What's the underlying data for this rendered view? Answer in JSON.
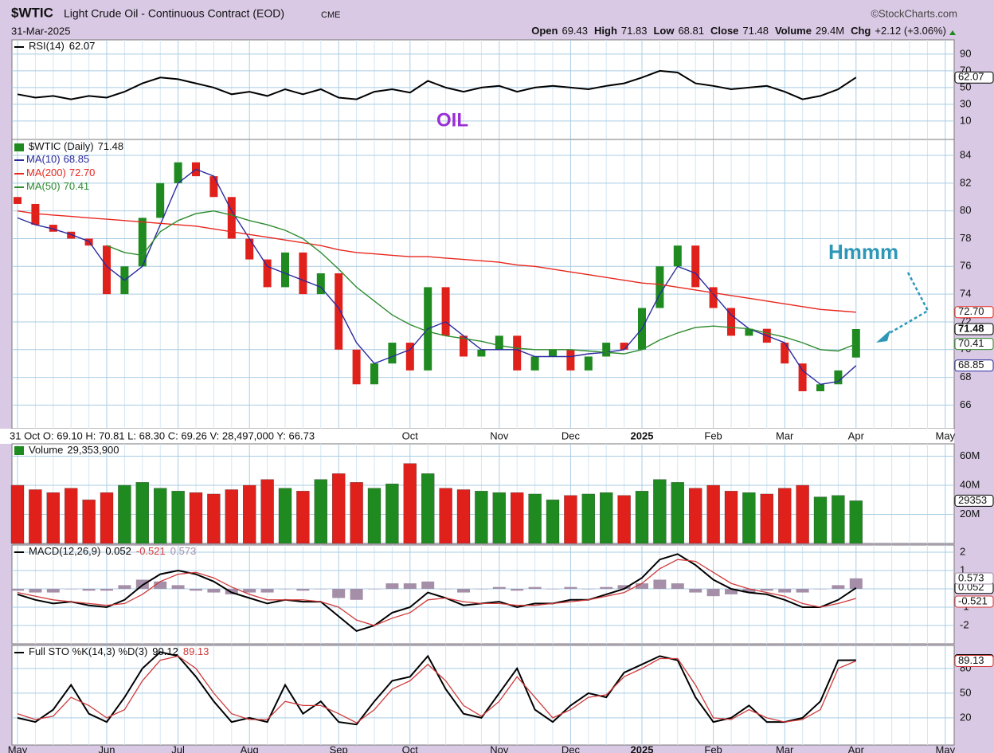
{
  "header": {
    "symbol": "$WTIC",
    "name": "Light Crude Oil - Continuous Contract (EOD)",
    "exchange": "CME",
    "source": "©StockCharts.com",
    "date": "31-Mar-2025",
    "quote": [
      {
        "label": "Open",
        "value": 69.43
      },
      {
        "label": "High",
        "value": 71.83
      },
      {
        "label": "Low",
        "value": 68.81
      },
      {
        "label": "Close",
        "value": 71.48
      },
      {
        "label": "Volume",
        "value": "29.4M"
      },
      {
        "label": "Chg",
        "value": "+2.12 (+3.06%)"
      }
    ]
  },
  "chart_data": [
    {
      "type": "line",
      "title": "RSI(14)",
      "annotation": "OIL",
      "ylim": [
        -12,
        107
      ],
      "yticks": [
        10,
        30,
        50,
        70,
        90
      ],
      "grid": true,
      "series": [
        {
          "color": "#000000",
          "values": [
            42,
            38,
            40,
            36,
            40,
            38,
            45,
            55,
            62,
            60,
            55,
            50,
            42,
            45,
            40,
            48,
            42,
            48,
            38,
            36,
            45,
            48,
            44,
            58,
            50,
            45,
            50,
            52,
            45,
            50,
            52,
            50,
            48,
            52,
            55,
            62,
            70,
            68,
            55,
            52,
            48,
            50,
            52,
            45,
            36,
            40,
            48,
            62.07,
            null,
            null,
            null,
            null,
            null
          ]
        }
      ]
    },
    {
      "type": "candlestick",
      "name": "$WTIC (Daily)",
      "annotation": "Hmmm",
      "info": "31 Oct O: 69.10 H: 70.81 L: 68.30 C: 69.26 V: 28,497,000 Y: 66.73",
      "categories": [
        "May",
        null,
        null,
        null,
        null,
        "Jun",
        null,
        null,
        null,
        "Jul",
        null,
        null,
        null,
        "Aug",
        null,
        null,
        null,
        null,
        "Sep",
        null,
        null,
        null,
        "Oct",
        null,
        null,
        null,
        null,
        "Nov",
        null,
        null,
        null,
        "Dec",
        null,
        null,
        null,
        "2025",
        null,
        null,
        null,
        "Feb",
        null,
        null,
        null,
        "Mar",
        null,
        null,
        null,
        "Apr",
        null,
        null,
        null,
        null,
        "May"
      ],
      "open": [
        81,
        80.5,
        79,
        78.5,
        78,
        77.5,
        74,
        76,
        79.5,
        82,
        83.5,
        82.5,
        81,
        78,
        76.5,
        74.5,
        77,
        74,
        75.5,
        70,
        67.5,
        69,
        70.5,
        68.5,
        74.5,
        71,
        69.5,
        70,
        71,
        68.5,
        69.5,
        70,
        68.5,
        69.5,
        70.5,
        70,
        73,
        76,
        77.5,
        74.5,
        73,
        71,
        71.5,
        70.5,
        69,
        67,
        67.5,
        69.43,
        null,
        null,
        null,
        null,
        null
      ],
      "values": [
        80.5,
        79,
        78.5,
        78,
        77.5,
        74,
        76,
        79.5,
        82,
        83.5,
        82.5,
        81,
        78,
        76.5,
        74.5,
        77,
        74,
        75.5,
        70,
        67.5,
        69,
        70.5,
        68.5,
        74.5,
        71,
        69.5,
        70,
        71,
        68.5,
        69.5,
        70,
        68.5,
        69.5,
        70.5,
        70,
        73,
        76,
        77.5,
        74.5,
        73,
        71,
        71.5,
        70.5,
        69,
        67,
        67.5,
        68.5,
        71.48,
        null,
        null,
        null,
        null,
        null
      ],
      "up_color": "#1f8a1f",
      "down_color": "#e0201b",
      "ylim": [
        64.3,
        85.15
      ],
      "yticks": [
        66,
        68,
        70,
        72,
        74,
        76,
        78,
        80,
        82,
        84
      ],
      "grid": true,
      "series": [
        {
          "name": "MA(10)",
          "color": "#2b2ba0",
          "values": [
            79.5,
            79,
            78.7,
            78.3,
            77.8,
            76,
            75,
            76,
            79,
            82,
            83,
            82.5,
            80,
            78,
            76,
            75.5,
            75,
            74.5,
            73,
            70.5,
            69,
            69.5,
            70,
            71.5,
            72,
            71,
            70,
            70,
            70,
            69.5,
            69.5,
            69.5,
            69.7,
            69.8,
            70,
            71.5,
            74,
            76,
            75.5,
            74,
            72.5,
            71.5,
            71,
            70.5,
            68.5,
            67.5,
            67.7,
            68.85,
            null,
            null,
            null,
            null,
            null
          ]
        },
        {
          "name": "MA(200)",
          "color": "#e8271e",
          "last_label": "72.70",
          "values": [
            80,
            79.8,
            79.7,
            79.6,
            79.5,
            79.4,
            79.3,
            79.2,
            79.1,
            79,
            78.9,
            78.7,
            78.5,
            78.3,
            78.1,
            77.9,
            77.7,
            77.5,
            77.2,
            77,
            76.9,
            76.8,
            76.7,
            76.7,
            76.6,
            76.5,
            76.4,
            76.3,
            76.1,
            76,
            75.8,
            75.6,
            75.4,
            75.2,
            75,
            74.8,
            74.7,
            74.5,
            74.3,
            74.1,
            73.9,
            73.7,
            73.5,
            73.3,
            73.1,
            72.9,
            72.8,
            72.7,
            null,
            null,
            null,
            null,
            null
          ]
        },
        {
          "name": "MA(50)",
          "color": "#2e8b2e",
          "values": [
            null,
            null,
            null,
            null,
            null,
            77.5,
            77,
            76.8,
            78.5,
            79.3,
            79.8,
            80,
            79.7,
            79.3,
            79,
            78.6,
            78,
            77,
            75.8,
            74.5,
            73.5,
            72.5,
            71.8,
            71.3,
            71,
            70.8,
            70.6,
            70.3,
            70.1,
            70,
            70,
            70,
            69.9,
            69.8,
            69.7,
            70,
            70.7,
            71.2,
            71.6,
            71.7,
            71.6,
            71.5,
            71.2,
            70.9,
            70.5,
            70,
            69.9,
            70.41,
            null,
            null,
            null,
            null,
            null
          ]
        }
      ]
    },
    {
      "type": "bar",
      "title": "Volume",
      "last_label": "29,353,900",
      "tag_label": "29353",
      "ylim": [
        0,
        68.5
      ],
      "yticks": [
        {
          "value": 20,
          "label": "20M"
        },
        {
          "value": 40,
          "label": "40M"
        },
        {
          "value": 60,
          "label": "60M"
        }
      ],
      "grid": true,
      "values": [
        40,
        37,
        35,
        38,
        30,
        35,
        40,
        42,
        38,
        36,
        35,
        34,
        37,
        40,
        44,
        38,
        36,
        44,
        48,
        42,
        38,
        41,
        55,
        48,
        38,
        37,
        36,
        35,
        35,
        34,
        30,
        33,
        34,
        35,
        33,
        36,
        44,
        42,
        38,
        40,
        36,
        35,
        34,
        38,
        40,
        32,
        33,
        29.3539,
        null,
        null,
        null,
        null,
        null
      ]
    },
    {
      "type": "macd",
      "title": "MACD(12,26,9)",
      "ylim": [
        -3,
        2.39
      ],
      "yticks": [
        -2,
        -1,
        0,
        1,
        2
      ],
      "grid": true,
      "series": [
        {
          "color": "#000000",
          "values": [
            -0.3,
            -0.6,
            -0.8,
            -0.7,
            -0.9,
            -1.0,
            -0.6,
            0.2,
            0.8,
            1.0,
            0.8,
            0.4,
            -0.2,
            -0.5,
            -0.8,
            -0.6,
            -0.7,
            -0.7,
            -1.5,
            -2.3,
            -2.0,
            -1.3,
            -1.0,
            -0.2,
            -0.5,
            -0.9,
            -0.8,
            -0.7,
            -1.0,
            -0.8,
            -0.8,
            -0.6,
            -0.6,
            -0.3,
            0.0,
            0.6,
            1.6,
            1.9,
            1.3,
            0.5,
            0.0,
            -0.2,
            -0.3,
            -0.6,
            -1.0,
            -1.0,
            -0.6,
            0.052,
            null,
            null,
            null,
            null,
            null
          ]
        },
        {
          "color": "#d03a3a",
          "values": [
            -0.2,
            -0.4,
            -0.6,
            -0.7,
            -0.8,
            -0.9,
            -0.8,
            -0.3,
            0.4,
            0.8,
            0.9,
            0.6,
            0.1,
            -0.3,
            -0.6,
            -0.6,
            -0.6,
            -0.7,
            -1.0,
            -1.7,
            -2.0,
            -1.6,
            -1.3,
            -0.6,
            -0.5,
            -0.7,
            -0.8,
            -0.8,
            -0.9,
            -0.9,
            -0.8,
            -0.7,
            -0.6,
            -0.4,
            -0.2,
            0.3,
            1.1,
            1.6,
            1.5,
            0.9,
            0.3,
            0.0,
            -0.2,
            -0.4,
            -0.8,
            -1.0,
            -0.8,
            -0.521,
            null,
            null,
            null,
            null,
            null
          ]
        }
      ],
      "histogram": {
        "color": "#a58fa8",
        "values": [
          -0.1,
          -0.2,
          -0.2,
          0,
          -0.1,
          -0.1,
          0.2,
          0.5,
          0.4,
          0.2,
          -0.1,
          -0.2,
          -0.3,
          -0.2,
          -0.2,
          0,
          -0.1,
          0,
          -0.5,
          -0.6,
          0,
          0.3,
          0.3,
          0.4,
          0,
          -0.2,
          0,
          0.1,
          -0.1,
          0.1,
          0,
          0.1,
          0,
          0.1,
          0.2,
          0.3,
          0.5,
          0.3,
          -0.2,
          -0.4,
          -0.3,
          -0.2,
          -0.1,
          -0.2,
          -0.2,
          0,
          0.2,
          0.573,
          null,
          null,
          null,
          null,
          null
        ]
      }
    },
    {
      "type": "line",
      "title": "Full STO %K(14,3) %D(3)",
      "ylim": [
        -13,
        108
      ],
      "yticks": [
        20,
        50,
        80
      ],
      "grid": true,
      "series": [
        {
          "color": "#000000",
          "values": [
            20,
            15,
            30,
            60,
            25,
            15,
            45,
            80,
            100,
            95,
            70,
            40,
            15,
            20,
            15,
            60,
            25,
            40,
            15,
            12,
            40,
            65,
            70,
            95,
            55,
            25,
            20,
            50,
            80,
            30,
            15,
            35,
            50,
            45,
            75,
            85,
            95,
            90,
            45,
            15,
            20,
            35,
            15,
            15,
            20,
            40,
            90,
            90.12,
            null,
            null,
            null,
            null,
            null
          ]
        },
        {
          "color": "#d03a3a",
          "values": [
            25,
            18,
            22,
            45,
            35,
            20,
            30,
            65,
            90,
            95,
            80,
            50,
            25,
            18,
            18,
            40,
            35,
            35,
            25,
            14,
            30,
            55,
            65,
            85,
            65,
            35,
            22,
            40,
            70,
            45,
            20,
            30,
            45,
            48,
            70,
            80,
            92,
            92,
            60,
            20,
            18,
            30,
            20,
            15,
            18,
            30,
            80,
            89.13,
            null,
            null,
            null,
            null,
            null
          ]
        }
      ]
    }
  ]
}
